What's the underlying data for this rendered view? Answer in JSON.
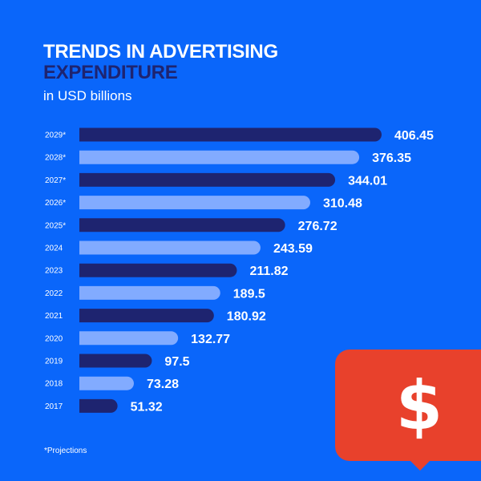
{
  "header": {
    "title_line1": "TRENDS IN ADVERTISING",
    "title_line2": "EXPENDITURE",
    "subtitle": "in USD billions"
  },
  "footnote": "*Projections",
  "badge": {
    "icon": "dollar-icon",
    "glyph": "$",
    "color": "#e8412c"
  },
  "colors": {
    "background": "#0a66fa",
    "bar_dark": "#1e2470",
    "bar_light": "#82abff",
    "text": "#ffffff"
  },
  "chart_data": {
    "type": "bar",
    "orientation": "horizontal",
    "title": "TRENDS IN ADVERTISING EXPENDITURE",
    "subtitle": "in USD billions",
    "xlabel": "",
    "ylabel": "",
    "xlim": [
      0,
      406.45
    ],
    "grid": false,
    "legend": "none",
    "categories": [
      "2029*",
      "2028*",
      "2027*",
      "2026*",
      "2025*",
      "2024",
      "2023",
      "2022",
      "2021",
      "2020",
      "2019",
      "2018",
      "2017"
    ],
    "values": [
      406.45,
      376.35,
      344.01,
      310.48,
      276.72,
      243.59,
      211.82,
      189.5,
      180.92,
      132.77,
      97.5,
      73.28,
      51.32
    ],
    "value_labels": [
      "406.45",
      "376.35",
      "344.01",
      "310.48",
      "276.72",
      "243.59",
      "211.82",
      "189.5",
      "180.92",
      "132.77",
      "97.5",
      "73.28",
      "51.32"
    ],
    "annotations": [
      "*Projections"
    ]
  }
}
